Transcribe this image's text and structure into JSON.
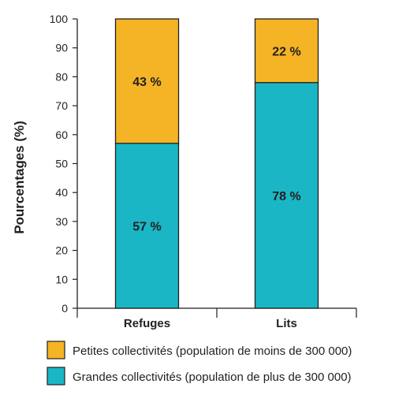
{
  "chart_data": {
    "type": "bar",
    "stacked": true,
    "categories": [
      "Refuges",
      "Lits"
    ],
    "series": [
      {
        "name": "Grandes collectivités (population de plus de 300 000)",
        "values": [
          57,
          78
        ],
        "labels": [
          "57 %",
          "78 %"
        ],
        "color": "#1ab6c5"
      },
      {
        "name": "Petites collectivités (population de moins de 300 000)",
        "values": [
          43,
          22
        ],
        "labels": [
          "43 %",
          "22 %"
        ],
        "color": "#f4b425"
      }
    ],
    "legend_order": [
      1,
      0
    ],
    "xlabel": "",
    "ylabel": "Pourcentages (%)",
    "ylim": [
      0,
      100
    ],
    "yticks": [
      0,
      10,
      20,
      30,
      40,
      50,
      60,
      70,
      80,
      90,
      100
    ],
    "grid": false,
    "legend_position": "bottom"
  }
}
